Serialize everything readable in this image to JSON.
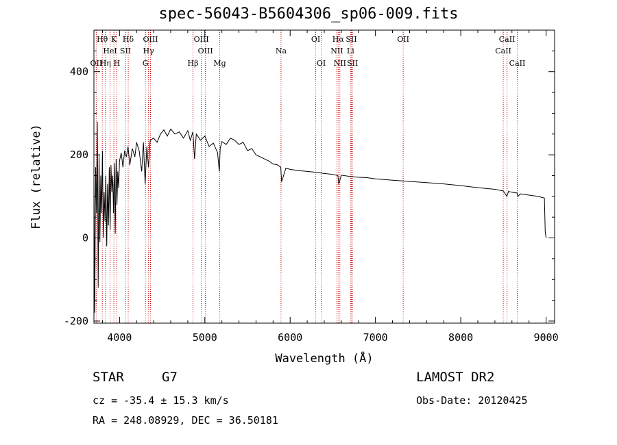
{
  "header": {
    "title": "spec-56043-B5604306_sp06-009.fits"
  },
  "info": {
    "obj_class": "STAR",
    "obj_subclass": "G7",
    "survey": "LAMOST DR2",
    "cz": "cz = -35.4 ± 15.3 km/s",
    "obs_date": "Obs-Date: 20120425",
    "radec": "RA = 248.08929, DEC =  36.50181"
  },
  "chart_data": {
    "type": "line",
    "title": "spec-56043-B5604306_sp06-009.fits",
    "xlabel": "Wavelength (Å)",
    "ylabel": "Flux (relative)",
    "xlim": [
      3700,
      9100
    ],
    "ylim": [
      -205,
      500
    ],
    "xticks": [
      4000,
      5000,
      6000,
      7000,
      8000,
      9000
    ],
    "yticks": [
      -200,
      0,
      200,
      400
    ],
    "grid": false,
    "series": [
      {
        "color": "#000000",
        "x": [
          3700,
          3710,
          3720,
          3730,
          3740,
          3750,
          3760,
          3770,
          3780,
          3790,
          3800,
          3810,
          3820,
          3830,
          3840,
          3850,
          3860,
          3870,
          3880,
          3890,
          3900,
          3910,
          3920,
          3930,
          3940,
          3950,
          3960,
          3970,
          3980,
          3990,
          4000,
          4020,
          4040,
          4060,
          4080,
          4100,
          4120,
          4150,
          4180,
          4200,
          4230,
          4260,
          4280,
          4300,
          4320,
          4340,
          4360,
          4400,
          4440,
          4480,
          4520,
          4560,
          4600,
          4650,
          4700,
          4750,
          4800,
          4830,
          4860,
          4880,
          4900,
          4950,
          5000,
          5050,
          5100,
          5150,
          5170,
          5180,
          5200,
          5250,
          5300,
          5350,
          5400,
          5450,
          5500,
          5550,
          5600,
          5650,
          5700,
          5750,
          5800,
          5850,
          5890,
          5900,
          5950,
          6000,
          6100,
          6200,
          6300,
          6400,
          6500,
          6560,
          6570,
          6600,
          6700,
          6800,
          6900,
          7000,
          7200,
          7400,
          7600,
          7800,
          8000,
          8200,
          8400,
          8500,
          8540,
          8560,
          8600,
          8660,
          8670,
          8700,
          8800,
          8900,
          8980,
          8990,
          9000
        ],
        "values": [
          130,
          -180,
          170,
          60,
          280,
          -120,
          200,
          -10,
          150,
          60,
          210,
          0,
          110,
          40,
          150,
          -20,
          130,
          30,
          170,
          20,
          175,
          110,
          150,
          60,
          180,
          10,
          190,
          80,
          160,
          120,
          185,
          205,
          170,
          210,
          195,
          220,
          175,
          215,
          195,
          230,
          210,
          160,
          230,
          130,
          220,
          170,
          235,
          240,
          230,
          250,
          260,
          245,
          262,
          250,
          255,
          240,
          258,
          235,
          255,
          190,
          250,
          235,
          245,
          220,
          228,
          205,
          160,
          215,
          232,
          225,
          240,
          235,
          225,
          230,
          210,
          215,
          200,
          195,
          190,
          185,
          178,
          176,
          170,
          135,
          168,
          165,
          162,
          160,
          158,
          155,
          153,
          150,
          130,
          151,
          148,
          146,
          145,
          142,
          139,
          136,
          133,
          130,
          126,
          121,
          117,
          113,
          100,
          112,
          110,
          108,
          100,
          106,
          103,
          100,
          96,
          15,
          0
        ]
      }
    ],
    "line_labels": [
      {
        "name": "Hθ",
        "x": 3798,
        "row": 0
      },
      {
        "name": "K",
        "x": 3934,
        "row": 0
      },
      {
        "name": "Hδ",
        "x": 4102,
        "row": 0
      },
      {
        "name": "OIII",
        "x": 4363,
        "row": 0
      },
      {
        "name": "OIII",
        "x": 4959,
        "row": 0
      },
      {
        "name": "OI",
        "x": 6300,
        "row": 0
      },
      {
        "name": "Hα",
        "x": 6563,
        "row": 0
      },
      {
        "name": "SII",
        "x": 6717,
        "row": 0
      },
      {
        "name": "CaII",
        "x": 8542,
        "row": 0
      },
      {
        "name": "HeI",
        "x": 3889,
        "row": 1
      },
      {
        "name": "SII",
        "x": 4070,
        "row": 1
      },
      {
        "name": "Hγ",
        "x": 4340,
        "row": 1
      },
      {
        "name": "OIII",
        "x": 5007,
        "row": 1
      },
      {
        "name": "Na",
        "x": 5893,
        "row": 1
      },
      {
        "name": "NII",
        "x": 6548,
        "row": 1
      },
      {
        "name": "Li",
        "x": 6708,
        "row": 1
      },
      {
        "name": "CaII",
        "x": 8498,
        "row": 1
      },
      {
        "name": "OII",
        "x": 3727,
        "row": 2
      },
      {
        "name": "Hη",
        "x": 3835,
        "row": 2
      },
      {
        "name": "H",
        "x": 3969,
        "row": 2
      },
      {
        "name": "G",
        "x": 4304,
        "row": 2
      },
      {
        "name": "Hβ",
        "x": 4861,
        "row": 2
      },
      {
        "name": "Mg",
        "x": 5175,
        "row": 2
      },
      {
        "name": "OI",
        "x": 6364,
        "row": 2
      },
      {
        "name": "NII",
        "x": 6583,
        "row": 2
      },
      {
        "name": "SII",
        "x": 6731,
        "row": 2
      },
      {
        "name": "OII",
        "x": 7325,
        "row": 0
      },
      {
        "name": "CaII",
        "x": 8662,
        "row": 2
      }
    ],
    "line_color": "#cc0000"
  }
}
